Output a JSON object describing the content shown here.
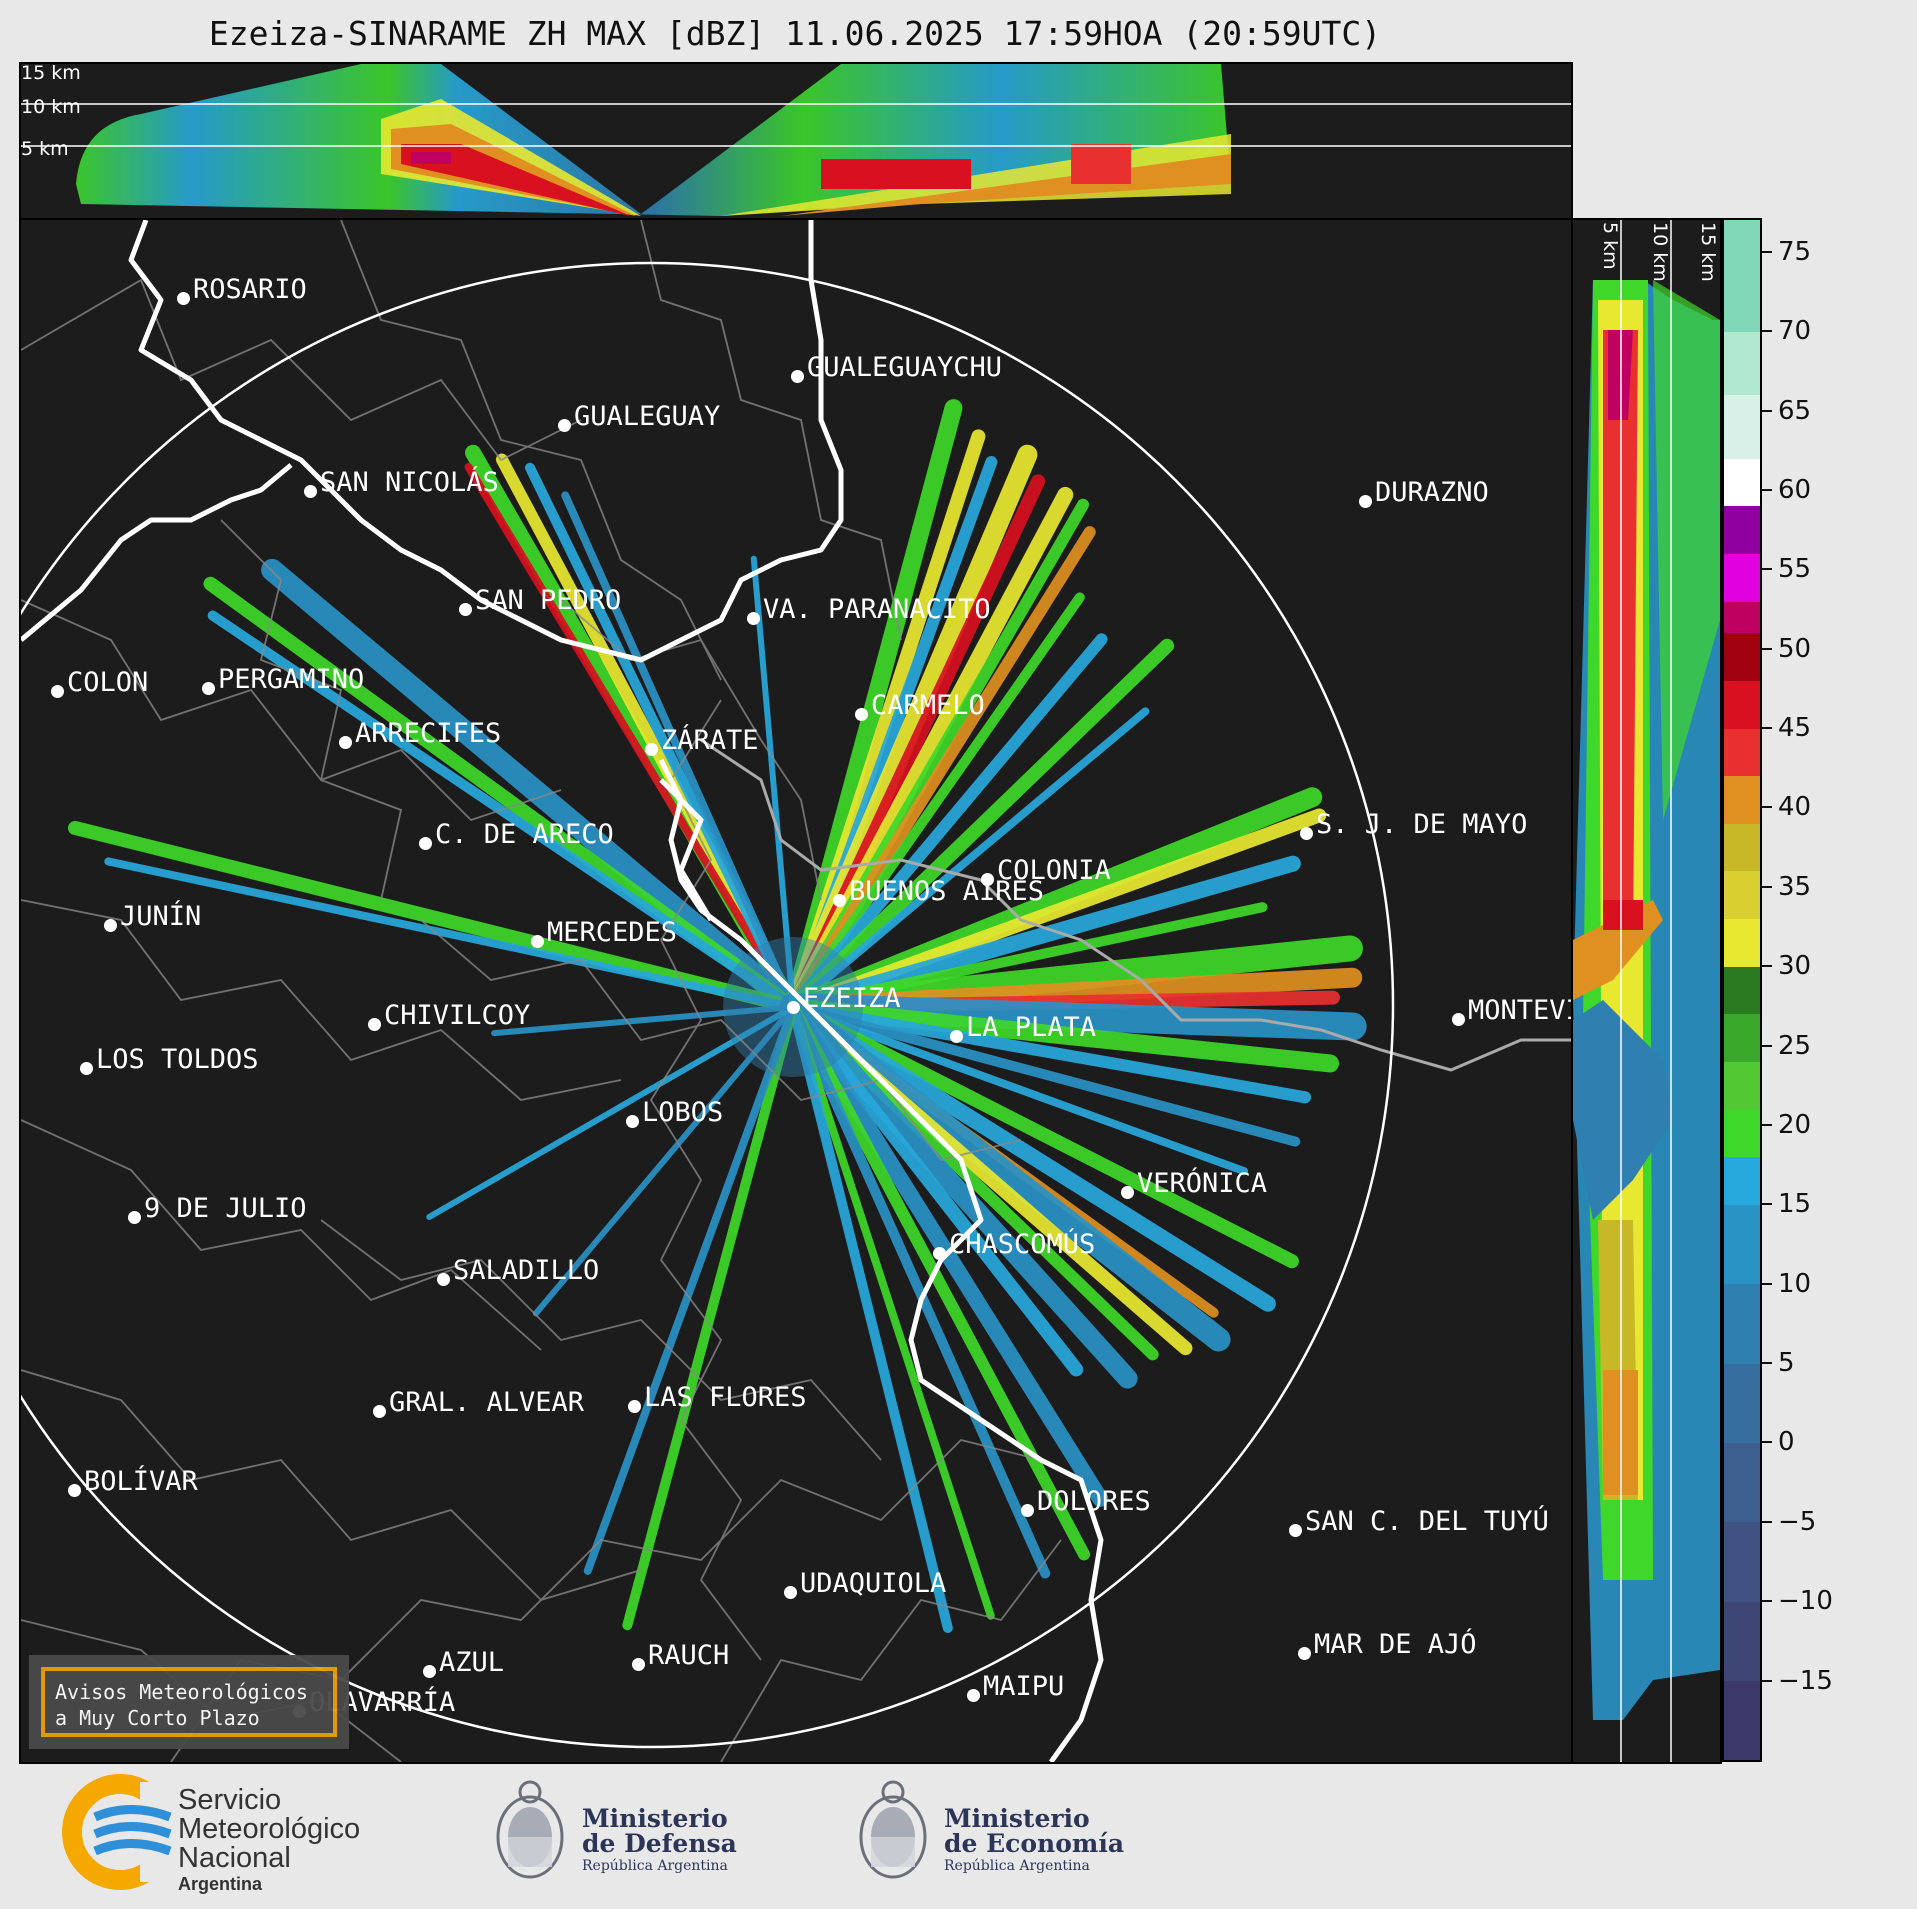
{
  "title": "Ezeiza-SINARAME ZH MAX [dBZ] 11.06.2025 17:59HOA (20:59UTC)",
  "top_panel": {
    "altitude_labels": [
      "15 km",
      "10 km",
      "5 km"
    ]
  },
  "side_panel": {
    "altitude_labels": [
      "5 km",
      "10 km",
      "15 km"
    ]
  },
  "colorbar": {
    "unit": "dBZ",
    "ticks": [
      "75",
      "70",
      "65",
      "60",
      "55",
      "50",
      "45",
      "40",
      "35",
      "30",
      "25",
      "20",
      "15",
      "10",
      "5",
      "0",
      "−5",
      "−10",
      "−15"
    ],
    "min": -20,
    "max": 77,
    "colors": [
      {
        "from": -20,
        "to": -15,
        "color": "#3c3a6a"
      },
      {
        "from": -15,
        "to": -10,
        "color": "#3e4676"
      },
      {
        "from": -10,
        "to": -5,
        "color": "#3f5282"
      },
      {
        "from": -5,
        "to": 0,
        "color": "#3d5f90"
      },
      {
        "from": 0,
        "to": 5,
        "color": "#366f9f"
      },
      {
        "from": 5,
        "to": 10,
        "color": "#2f7fb0"
      },
      {
        "from": 10,
        "to": 15,
        "color": "#2a93c6"
      },
      {
        "from": 15,
        "to": 18,
        "color": "#27a8dc"
      },
      {
        "from": 18,
        "to": 21,
        "color": "#3ed82a"
      },
      {
        "from": 21,
        "to": 24,
        "color": "#52c832"
      },
      {
        "from": 24,
        "to": 27,
        "color": "#3aa82a"
      },
      {
        "from": 27,
        "to": 30,
        "color": "#2a7a22"
      },
      {
        "from": 30,
        "to": 33,
        "color": "#e8e830"
      },
      {
        "from": 33,
        "to": 36,
        "color": "#d8d030"
      },
      {
        "from": 36,
        "to": 39,
        "color": "#c8b828"
      },
      {
        "from": 39,
        "to": 42,
        "color": "#e09020"
      },
      {
        "from": 42,
        "to": 45,
        "color": "#e83030"
      },
      {
        "from": 45,
        "to": 48,
        "color": "#d81020"
      },
      {
        "from": 48,
        "to": 51,
        "color": "#a00010"
      },
      {
        "from": 51,
        "to": 53,
        "color": "#c00060"
      },
      {
        "from": 53,
        "to": 56,
        "color": "#e000e0"
      },
      {
        "from": 56,
        "to": 59,
        "color": "#9000a0"
      },
      {
        "from": 59,
        "to": 62,
        "color": "#ffffff"
      },
      {
        "from": 62,
        "to": 66,
        "color": "#d8f0e8"
      },
      {
        "from": 66,
        "to": 70,
        "color": "#b0e8d0"
      },
      {
        "from": 70,
        "to": 77,
        "color": "#80d8b8"
      }
    ]
  },
  "cities": [
    {
      "name": "ROSARIO"
    },
    {
      "name": "GUALEGUAYCHU"
    },
    {
      "name": "GUALEGUAY"
    },
    {
      "name": "SAN NICOLÁS"
    },
    {
      "name": "DURAZNO"
    },
    {
      "name": "SAN PEDRO"
    },
    {
      "name": "VA. PARANACITO"
    },
    {
      "name": "COLON"
    },
    {
      "name": "PERGAMINO"
    },
    {
      "name": "CARMELO"
    },
    {
      "name": "ARRECIFES"
    },
    {
      "name": "ZÁRATE"
    },
    {
      "name": "S. J. DE MAYO"
    },
    {
      "name": "C. DE ARECO"
    },
    {
      "name": "COLONIA"
    },
    {
      "name": "JUNÍN"
    },
    {
      "name": "BUENOS AIRES"
    },
    {
      "name": "MERCEDES"
    },
    {
      "name": "EZEIZA"
    },
    {
      "name": "MONTEVIDEO"
    },
    {
      "name": "CHIVILCOY"
    },
    {
      "name": "LA PLATA"
    },
    {
      "name": "LOS TOLDOS"
    },
    {
      "name": "LOBOS"
    },
    {
      "name": "VERÓNICA"
    },
    {
      "name": "9 DE JULIO"
    },
    {
      "name": "CHASCOMÚS"
    },
    {
      "name": "SALADILLO"
    },
    {
      "name": "GRAL. ALVEAR"
    },
    {
      "name": "LAS FLORES"
    },
    {
      "name": "BOLÍVAR"
    },
    {
      "name": "DOLORES"
    },
    {
      "name": "SAN C. DEL TUYÚ"
    },
    {
      "name": "UDAQUIOLA"
    },
    {
      "name": "MAR DE AJÓ"
    },
    {
      "name": "AZUL"
    },
    {
      "name": "RAUCH"
    },
    {
      "name": "OLAVARRÍA"
    },
    {
      "name": "MAIPU"
    }
  ],
  "avisos": {
    "line1": "Avisos Meteorológicos",
    "line2": "a Muy Corto Plazo"
  },
  "footer": {
    "smn": {
      "line1": "Servicio",
      "line2": "Meteorológico",
      "line3": "Nacional",
      "line4": "Argentina"
    },
    "defensa": {
      "line1": "Ministerio",
      "line2": "de Defensa",
      "line3": "República Argentina"
    },
    "economia": {
      "line1": "Ministerio",
      "line2": "de Economía",
      "line3": "República Argentina"
    },
    "colors": {
      "smn_orange": "#f5a800",
      "smn_blue": "#2f8fd8",
      "ministry_navy": "#2c3558"
    }
  }
}
